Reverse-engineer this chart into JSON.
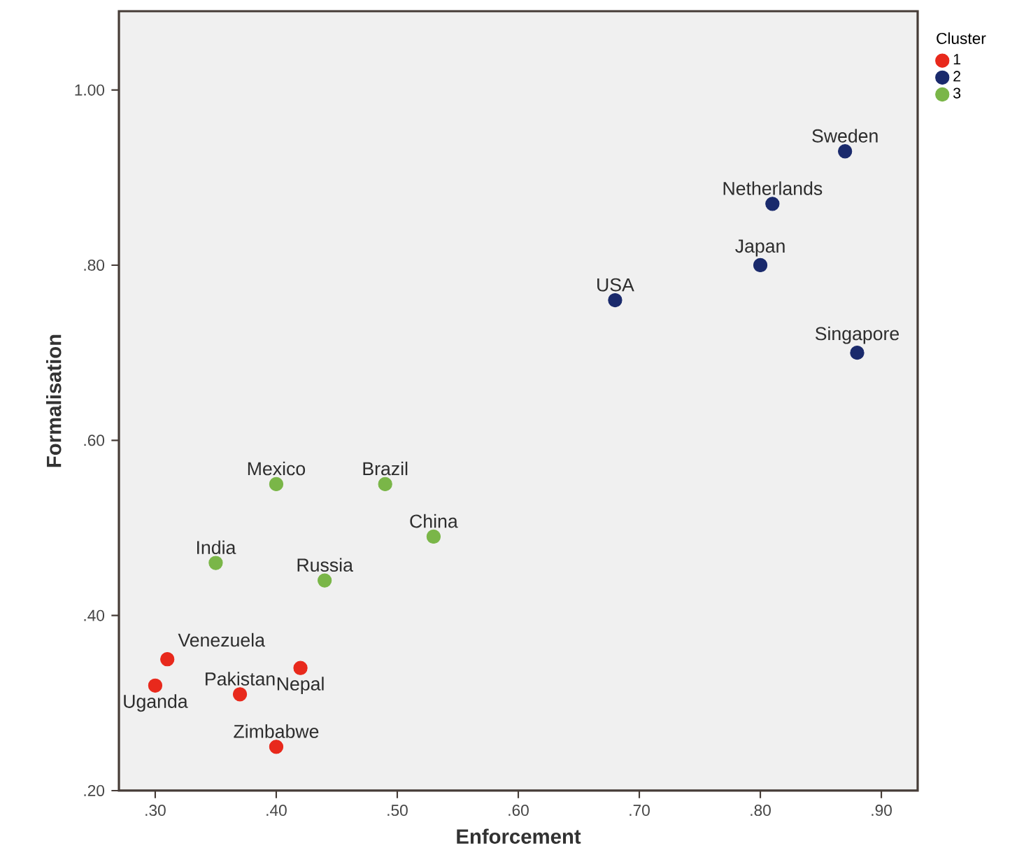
{
  "chart_data": {
    "type": "scatter",
    "xlabel": "Enforcement",
    "ylabel": "Formalisation",
    "legend_title": "Cluster",
    "legend": "right",
    "marker": "circle",
    "xlim": [
      0.27,
      0.93
    ],
    "ylim": [
      0.2,
      1.09
    ],
    "xticks": [
      {
        "value": 0.3,
        "label": ".30"
      },
      {
        "value": 0.4,
        "label": ".40"
      },
      {
        "value": 0.5,
        "label": ".50"
      },
      {
        "value": 0.6,
        "label": ".60"
      },
      {
        "value": 0.7,
        "label": ".70"
      },
      {
        "value": 0.8,
        "label": ".80"
      },
      {
        "value": 0.9,
        "label": ".90"
      }
    ],
    "yticks": [
      {
        "value": 0.2,
        "label": ".20"
      },
      {
        "value": 0.4,
        "label": ".40"
      },
      {
        "value": 0.6,
        "label": ".60"
      },
      {
        "value": 0.8,
        "label": ".80"
      },
      {
        "value": 1.0,
        "label": "1.00"
      }
    ],
    "series": [
      {
        "name": "1",
        "color": "#e8291c",
        "x": [
          0.31,
          0.3,
          0.37,
          0.42,
          0.4
        ],
        "values": [
          0.35,
          0.32,
          0.31,
          0.34,
          0.25
        ]
      },
      {
        "name": "2",
        "color": "#1a2a6c",
        "x": [
          0.87,
          0.81,
          0.8,
          0.68,
          0.88
        ],
        "values": [
          0.93,
          0.87,
          0.8,
          0.76,
          0.7
        ]
      },
      {
        "name": "3",
        "color": "#7ab648",
        "x": [
          0.4,
          0.49,
          0.53,
          0.35,
          0.44
        ],
        "values": [
          0.55,
          0.55,
          0.49,
          0.46,
          0.44
        ]
      }
    ],
    "annotations": [
      {
        "text": "Sweden",
        "x": 0.87,
        "y": 0.93
      },
      {
        "text": "Netherlands",
        "x": 0.81,
        "y": 0.87
      },
      {
        "text": "Japan",
        "x": 0.8,
        "y": 0.8
      },
      {
        "text": "USA",
        "x": 0.68,
        "y": 0.76
      },
      {
        "text": "Singapore",
        "x": 0.88,
        "y": 0.7
      },
      {
        "text": "Mexico",
        "x": 0.4,
        "y": 0.55
      },
      {
        "text": "Brazil",
        "x": 0.49,
        "y": 0.55
      },
      {
        "text": "China",
        "x": 0.53,
        "y": 0.49
      },
      {
        "text": "India",
        "x": 0.35,
        "y": 0.46
      },
      {
        "text": "Russia",
        "x": 0.44,
        "y": 0.44
      },
      {
        "text": "Venezuela",
        "x": 0.31,
        "y": 0.35
      },
      {
        "text": "Nepal",
        "x": 0.42,
        "y": 0.34
      },
      {
        "text": "Zimbabwe",
        "x": 0.4,
        "y": 0.25
      },
      {
        "text": "Pakistan",
        "x": 0.37,
        "y": 0.31
      },
      {
        "text": "Uganda",
        "x": 0.3,
        "y": 0.32
      }
    ]
  }
}
